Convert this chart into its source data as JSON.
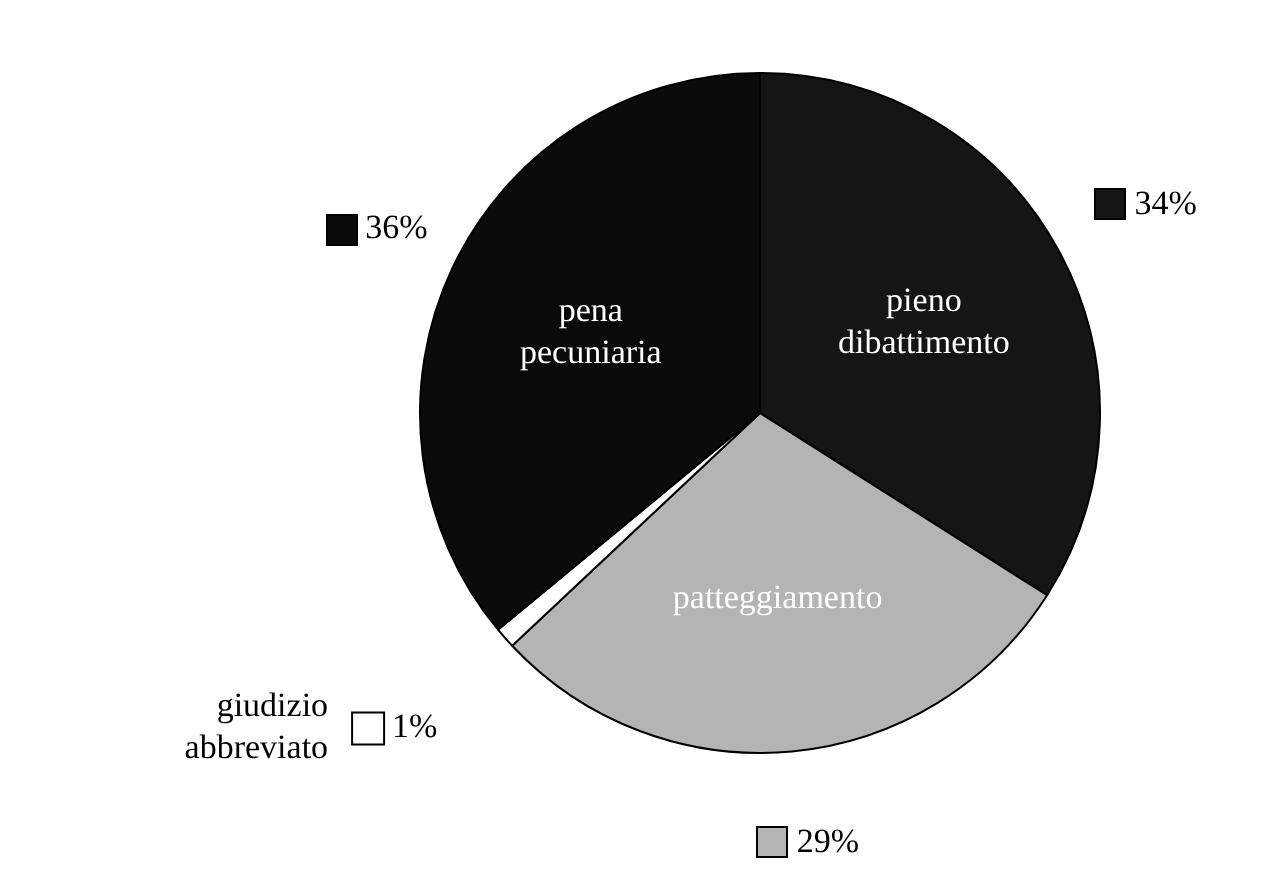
{
  "chart_data": {
    "type": "pie",
    "categories": [
      "pieno dibattimento",
      "patteggiamento",
      "giudizio abbreviato",
      "pena pecuniaria"
    ],
    "values": [
      34,
      29,
      1,
      36
    ],
    "value_labels": [
      "34%",
      "29%",
      "1%",
      "36%"
    ],
    "colors": [
      "#151515",
      "#b4b4b4",
      "#ffffff",
      "#0a0a0a"
    ],
    "legend": "left"
  }
}
